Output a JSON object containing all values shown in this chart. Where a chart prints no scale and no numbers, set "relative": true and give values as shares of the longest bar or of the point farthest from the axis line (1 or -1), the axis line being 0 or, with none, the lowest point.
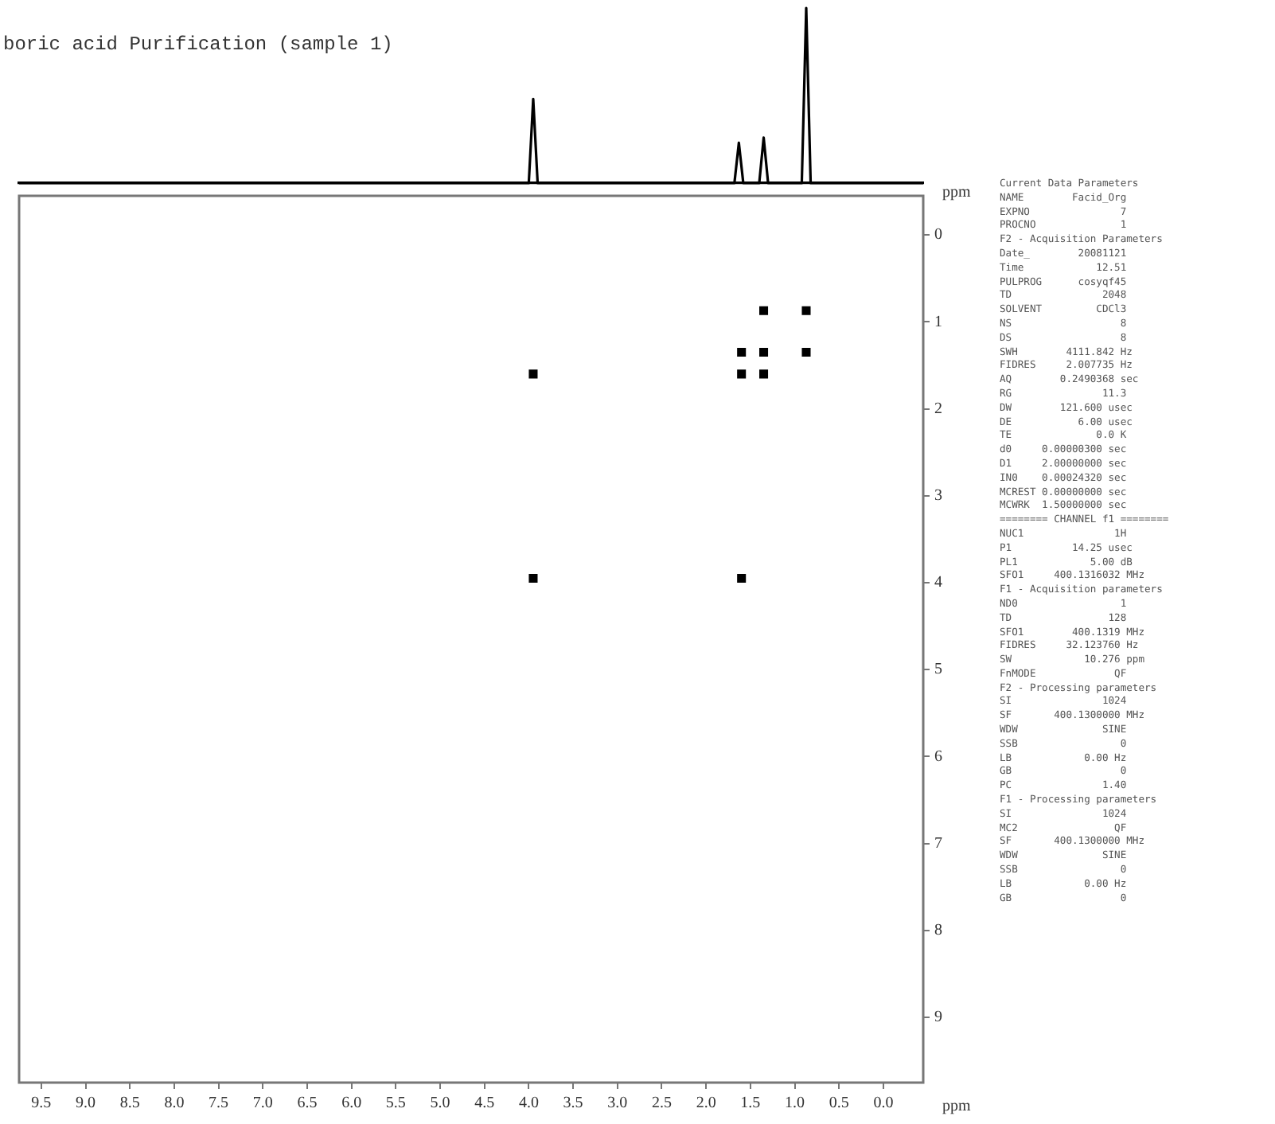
{
  "chart_data": [
    {
      "type": "line",
      "title": "boric acid Purification (sample 1)",
      "relative": true,
      "tick_labels": false,
      "grid": false,
      "legend": false,
      "marker": "none",
      "xlim": [
        9.75,
        -0.45
      ],
      "series": [
        {
          "color": "#000000",
          "x": [
            9.75,
            4.0,
            3.95,
            3.9,
            1.68,
            1.63,
            1.58,
            1.4,
            1.35,
            1.3,
            0.92,
            0.87,
            0.82,
            -0.45
          ],
          "values": [
            0,
            0,
            0.48,
            0,
            0,
            0.23,
            0,
            0,
            0.26,
            0,
            0,
            1,
            0,
            0
          ]
        }
      ]
    },
    {
      "type": "scatter",
      "xlabel": "ppm",
      "ylabel": "ppm",
      "grid": false,
      "legend": false,
      "marker": "square",
      "xlim": [
        9.75,
        -0.45
      ],
      "ylim": [
        9.75,
        -0.45
      ],
      "xticks": [
        {
          "value": 9.5,
          "label": "9.5"
        },
        {
          "value": 9,
          "label": "9.0"
        },
        {
          "value": 8.5,
          "label": "8.5"
        },
        {
          "value": 8,
          "label": "8.0"
        },
        {
          "value": 7.5,
          "label": "7.5"
        },
        {
          "value": 7,
          "label": "7.0"
        },
        {
          "value": 6.5,
          "label": "6.5"
        },
        {
          "value": 6,
          "label": "6.0"
        },
        {
          "value": 5.5,
          "label": "5.5"
        },
        {
          "value": 5,
          "label": "5.0"
        },
        {
          "value": 4.5,
          "label": "4.5"
        },
        {
          "value": 4,
          "label": "4.0"
        },
        {
          "value": 3.5,
          "label": "3.5"
        },
        {
          "value": 3,
          "label": "3.0"
        },
        {
          "value": 2.5,
          "label": "2.5"
        },
        {
          "value": 2,
          "label": "2.0"
        },
        {
          "value": 1.5,
          "label": "1.5"
        },
        {
          "value": 1,
          "label": "1.0"
        },
        {
          "value": 0.5,
          "label": "0.5"
        },
        {
          "value": 0,
          "label": "0.0"
        }
      ],
      "yticks": [
        0,
        1,
        2,
        3,
        4,
        5,
        6,
        7,
        8,
        9
      ],
      "series": [
        {
          "color": "#000000",
          "x": [
            3.95,
            1.6,
            1.35,
            0.87,
            1.6,
            3.95,
            1.35,
            0.87,
            1.6,
            1.35
          ],
          "values": [
            3.95,
            1.6,
            1.35,
            0.87,
            3.95,
            1.6,
            0.87,
            1.35,
            1.35,
            1.6
          ]
        }
      ],
      "annotations": [
        "Current Data Parameters",
        "NAME        Facid_Org",
        "EXPNO               7",
        "PROCNO              1",
        "F2 - Acquisition Parameters",
        "Date_        20081121",
        "Time            12.51",
        "PULPROG      cosyqf45",
        "TD               2048",
        "SOLVENT         CDCl3",
        "NS                  8",
        "DS                  8",
        "SWH        4111.842 Hz",
        "FIDRES     2.007735 Hz",
        "AQ        0.2490368 sec",
        "RG               11.3",
        "DW        121.600 usec",
        "DE           6.00 usec",
        "TE              0.0 K",
        "d0     0.00000300 sec",
        "D1     2.00000000 sec",
        "IN0    0.00024320 sec",
        "MCREST 0.00000000 sec",
        "MCWRK  1.50000000 sec",
        "======== CHANNEL f1 ========",
        "NUC1               1H",
        "P1          14.25 usec",
        "PL1            5.00 dB",
        "SFO1     400.1316032 MHz",
        "F1 - Acquisition parameters",
        "ND0                 1",
        "TD                128",
        "SFO1        400.1319 MHz",
        "FIDRES     32.123760 Hz",
        "SW            10.276 ppm",
        "FnMODE             QF",
        "F2 - Processing parameters",
        "SI               1024",
        "SF       400.1300000 MHz",
        "WDW              SINE",
        "SSB                 0",
        "LB            0.00 Hz",
        "GB                  0",
        "PC               1.40",
        "F1 - Processing parameters",
        "SI               1024",
        "MC2                QF",
        "SF       400.1300000 MHz",
        "WDW              SINE",
        "SSB                 0",
        "LB            0.00 Hz",
        "GB                  0"
      ]
    }
  ]
}
